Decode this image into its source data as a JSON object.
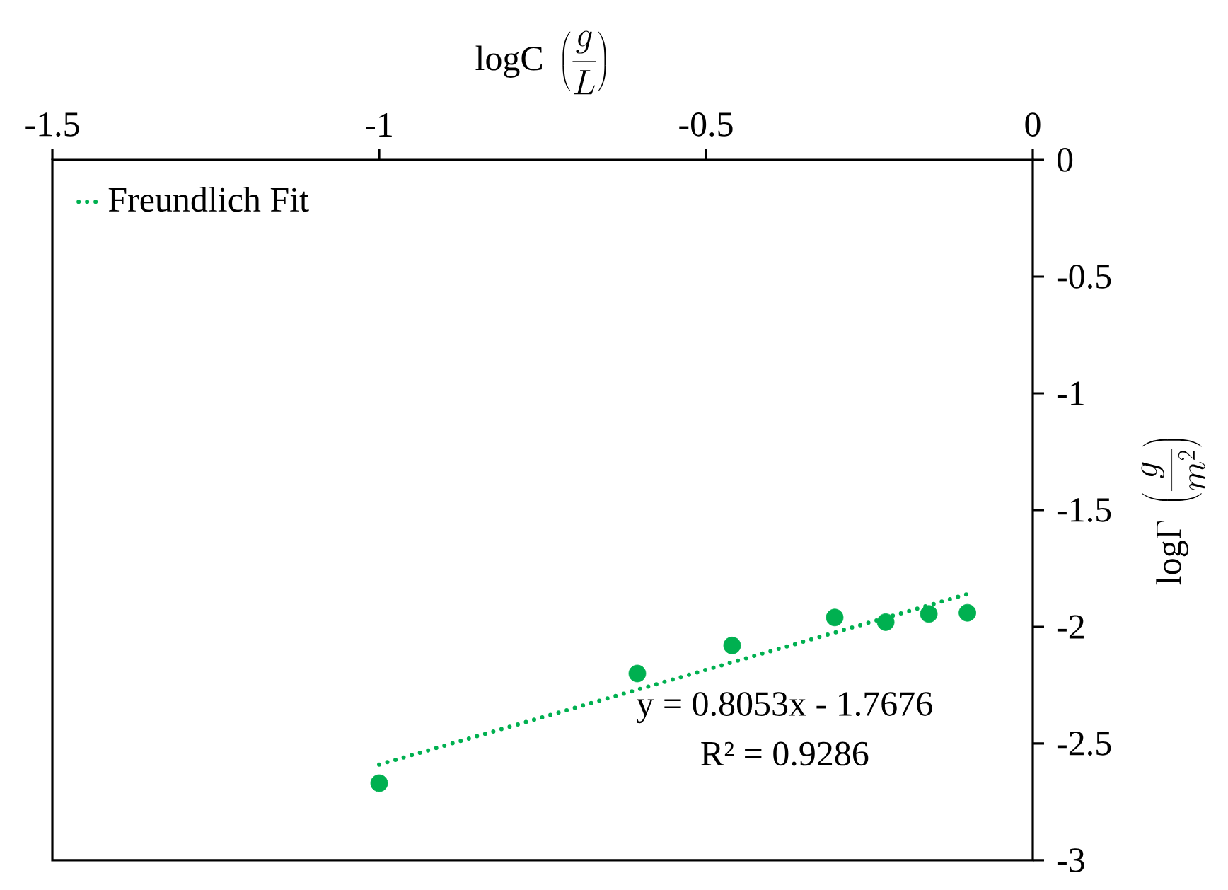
{
  "chart_data": {
    "type": "scatter",
    "xlabel": "\\mathrm{logC}\\ \\left(\\frac{g}{L}\\right)",
    "ylabel": "\\mathrm{log}\\Gamma\\ \\left(\\frac{g}{m^2}\\right)",
    "xlim": [
      -1.5,
      0
    ],
    "xticks": [
      -1.5,
      -1,
      -0.5,
      0
    ],
    "ylim": [
      -3,
      0
    ],
    "yticks": [
      -3,
      -2.5,
      -2,
      -1.5,
      -1,
      -0.5,
      0
    ],
    "series": [
      {
        "type": "scatter",
        "color": "#00b050",
        "marker": "circle",
        "x": [
          -1.0,
          -0.605,
          -0.46,
          -0.303,
          -0.225,
          -0.159,
          -0.1
        ],
        "values": [
          -2.67,
          -2.2,
          -2.08,
          -1.96,
          -1.98,
          -1.945,
          -1.94
        ]
      },
      {
        "type": "line",
        "name": "Freundlich Fit",
        "color": "#00b050",
        "line_style": "dotted",
        "x": [
          -1.0,
          -0.1
        ],
        "values": [
          -2.59,
          -1.86
        ]
      }
    ],
    "annotations": [
      "y = 0.8053x - 1.7676",
      "R² = 0.9286"
    ],
    "legend": "top left",
    "grid": false
  }
}
